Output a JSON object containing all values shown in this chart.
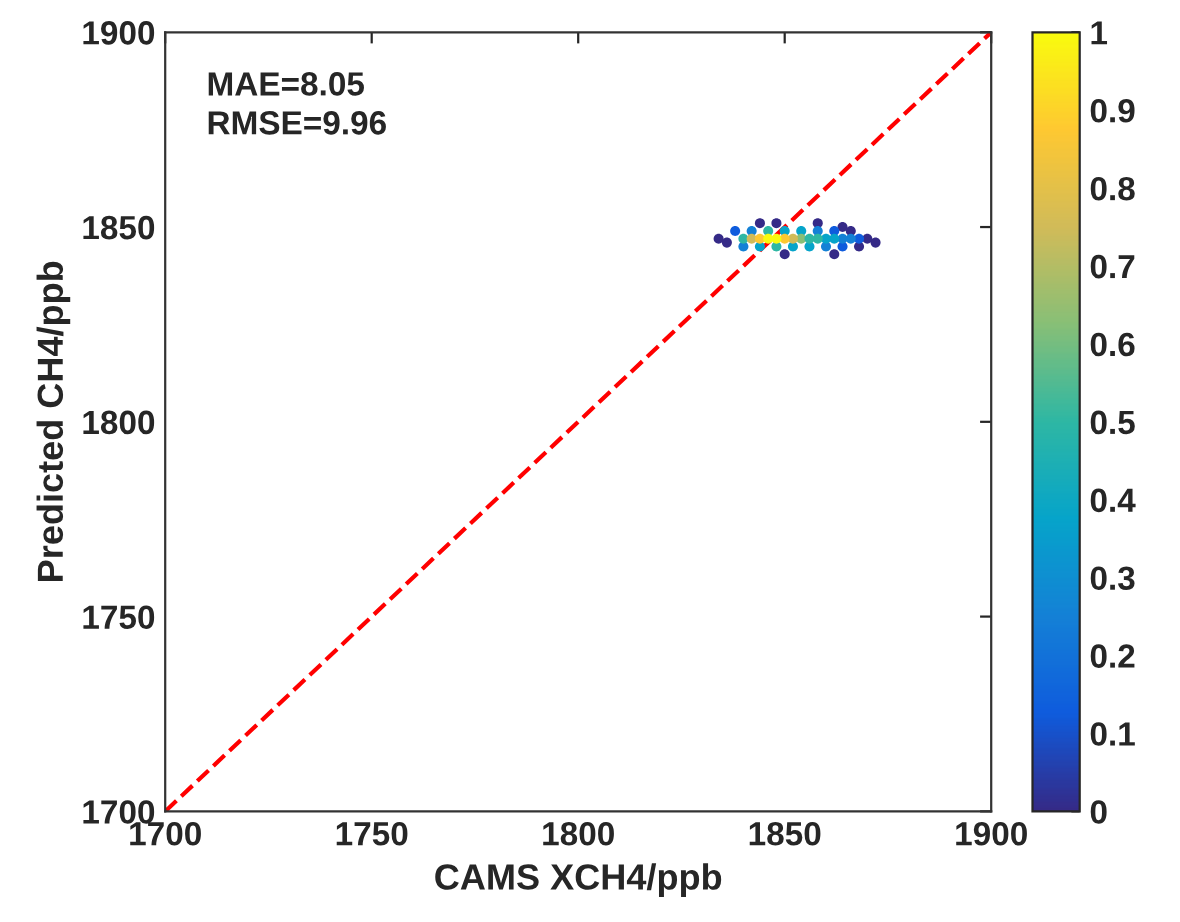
{
  "chart_data": {
    "type": "scatter",
    "xlabel": "CAMS XCH4/ppb",
    "ylabel": "Predicted CH4/ppb",
    "annotations": [
      "MAE=8.05",
      "RMSE=9.96"
    ],
    "xlim": [
      1700,
      1900
    ],
    "xticks": [
      1700,
      1750,
      1800,
      1850,
      1900
    ],
    "ylim": [
      1700,
      1900
    ],
    "yticks": [
      1700,
      1750,
      1800,
      1850,
      1900
    ],
    "clim": [
      0,
      1
    ],
    "cticks": [
      0,
      0.1,
      0.2,
      0.3,
      0.4,
      0.5,
      0.6,
      0.7,
      0.8,
      0.9,
      1
    ],
    "grid": false,
    "legend": false,
    "marker": "circle",
    "series": [
      {
        "x": [
          1844,
          1848,
          1858,
          1864,
          1850,
          1862,
          1834,
          1872,
          1868,
          1836,
          1866,
          1870,
          1838,
          1868,
          1864,
          1862,
          1840,
          1866,
          1860,
          1864,
          1858,
          1862,
          1844,
          1856,
          1852,
          1854,
          1842,
          1860,
          1850,
          1854,
          1858,
          1846,
          1840,
          1848,
          1856,
          1852,
          1842,
          1850,
          1844,
          1848,
          1846
        ],
        "values": [
          1851,
          1851,
          1851,
          1850,
          1843,
          1843,
          1847,
          1846,
          1845,
          1846,
          1849,
          1847,
          1849,
          1847,
          1845,
          1849,
          1845,
          1847,
          1845,
          1847,
          1849,
          1847,
          1845,
          1845,
          1845,
          1849,
          1849,
          1847,
          1849,
          1847,
          1847,
          1849,
          1847,
          1845,
          1847,
          1847,
          1847,
          1847,
          1847,
          1847,
          1847
        ],
        "colors": [
          "#352a87",
          "#352a87",
          "#352a87",
          "#352a87",
          "#352a87",
          "#352a87",
          "#352a87",
          "#352a87",
          "#352a87",
          "#352a87",
          "#352a87",
          "#352a87",
          "#0f5cdd",
          "#0f5cdd",
          "#0f5cdd",
          "#0f5cdd",
          "#1481d6",
          "#1481d6",
          "#1481d6",
          "#1481d6",
          "#1481d6",
          "#06a4ca",
          "#06a4ca",
          "#06a4ca",
          "#06a4ca",
          "#06a4ca",
          "#1481d6",
          "#06a4ca",
          "#06a4ca",
          "#87bf77",
          "#2eb7a4",
          "#2eb7a4",
          "#2eb7a4",
          "#2eb7a4",
          "#2eb7a4",
          "#d1bb59",
          "#d1bb59",
          "#fec832",
          "#fec832",
          "#f9fb0e",
          "#f9fb0e"
        ]
      },
      {
        "type": "line",
        "color": "#ff0000",
        "line_style": "dashed",
        "marker": "none",
        "x": [
          1700,
          1900
        ],
        "values": [
          1700,
          1900
        ]
      }
    ]
  }
}
